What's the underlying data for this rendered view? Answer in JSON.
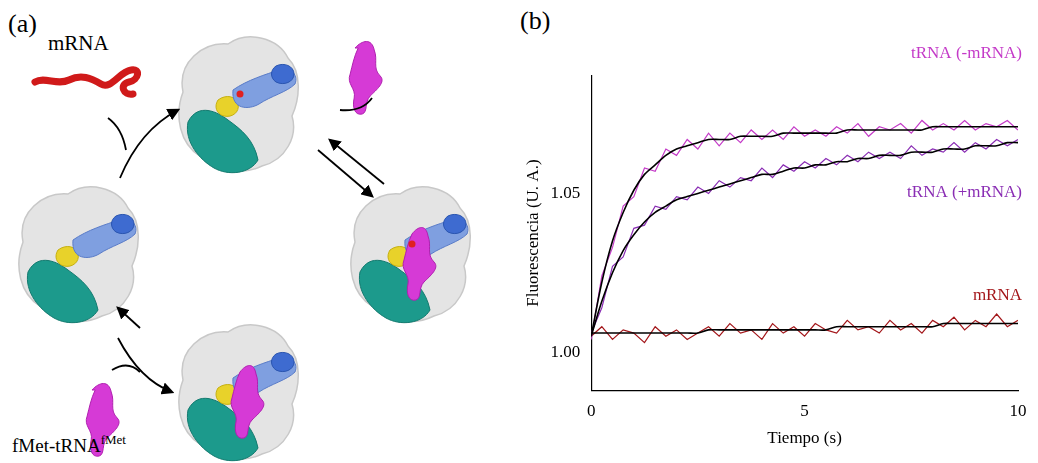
{
  "diagram": {
    "label": "(a)",
    "mrna_label": "mRNA",
    "trna_label": {
      "text": "fMet-tRNA",
      "superscript": "fMet"
    }
  },
  "chart_panel_label": "(b)",
  "chart_data": {
    "type": "line",
    "x_label": "Tiempo (s)",
    "y_label": "Fluorescencia (U. A.)",
    "x": [
      0,
      0.25,
      0.5,
      0.75,
      1,
      1.25,
      1.5,
      1.75,
      2,
      2.25,
      2.5,
      2.75,
      3,
      3.25,
      3.5,
      3.75,
      4,
      4.25,
      4.5,
      4.75,
      5,
      5.25,
      5.5,
      5.75,
      6,
      6.25,
      6.5,
      6.75,
      7,
      7.25,
      7.5,
      7.75,
      8,
      8.25,
      8.5,
      8.75,
      9,
      9.25,
      9.5,
      9.75,
      10
    ],
    "xlim": [
      0,
      10
    ],
    "xticks": [
      0,
      5,
      10
    ],
    "ylim": [
      0.988,
      1.087
    ],
    "yticks": [
      {
        "value": 1.0,
        "label": "1.00"
      },
      {
        "value": 1.05,
        "label": "1.05"
      }
    ],
    "grid": false,
    "series": [
      {
        "name": "tRNA (-mRNA)",
        "color": "#c43ac8",
        "values": [
          1.004,
          1.024,
          1.033,
          1.046,
          1.049,
          1.058,
          1.057,
          1.064,
          1.062,
          1.067,
          1.064,
          1.069,
          1.065,
          1.069,
          1.066,
          1.07,
          1.067,
          1.07,
          1.067,
          1.071,
          1.068,
          1.07,
          1.068,
          1.071,
          1.069,
          1.072,
          1.068,
          1.071,
          1.07,
          1.072,
          1.069,
          1.073,
          1.07,
          1.072,
          1.07,
          1.073,
          1.07,
          1.072,
          1.071,
          1.073,
          1.07
        ],
        "fit": [
          1.005,
          1.022,
          1.035,
          1.044,
          1.051,
          1.056,
          1.059,
          1.062,
          1.064,
          1.065,
          1.066,
          1.067,
          1.067,
          1.067,
          1.068,
          1.068,
          1.068,
          1.068,
          1.069,
          1.069,
          1.069,
          1.069,
          1.069,
          1.069,
          1.07,
          1.07,
          1.07,
          1.07,
          1.07,
          1.07,
          1.07,
          1.07,
          1.071,
          1.071,
          1.071,
          1.071,
          1.071,
          1.071,
          1.071,
          1.071,
          1.071
        ]
      },
      {
        "name": "tRNA (+mRNA)",
        "color": "#8a2db4",
        "values": [
          1.006,
          1.014,
          1.027,
          1.03,
          1.039,
          1.04,
          1.046,
          1.045,
          1.049,
          1.048,
          1.052,
          1.05,
          1.054,
          1.052,
          1.055,
          1.054,
          1.058,
          1.055,
          1.059,
          1.057,
          1.06,
          1.058,
          1.061,
          1.059,
          1.062,
          1.06,
          1.063,
          1.061,
          1.063,
          1.061,
          1.065,
          1.062,
          1.064,
          1.063,
          1.066,
          1.063,
          1.066,
          1.064,
          1.067,
          1.065,
          1.067
        ],
        "fit": [
          1.005,
          1.016,
          1.025,
          1.032,
          1.037,
          1.041,
          1.044,
          1.046,
          1.048,
          1.049,
          1.05,
          1.051,
          1.052,
          1.053,
          1.054,
          1.055,
          1.056,
          1.056,
          1.057,
          1.058,
          1.058,
          1.059,
          1.059,
          1.06,
          1.06,
          1.061,
          1.061,
          1.062,
          1.062,
          1.062,
          1.063,
          1.063,
          1.063,
          1.064,
          1.064,
          1.064,
          1.065,
          1.065,
          1.065,
          1.066,
          1.066
        ]
      },
      {
        "name": "mRNA",
        "color": "#a3161a",
        "values": [
          1.005,
          1.008,
          1.004,
          1.007,
          1.006,
          1.003,
          1.008,
          1.005,
          1.007,
          1.004,
          1.006,
          1.008,
          1.005,
          1.009,
          1.006,
          1.007,
          1.004,
          1.009,
          1.006,
          1.008,
          1.005,
          1.009,
          1.007,
          1.006,
          1.01,
          1.007,
          1.008,
          1.006,
          1.01,
          1.007,
          1.009,
          1.006,
          1.01,
          1.008,
          1.011,
          1.007,
          1.01,
          1.008,
          1.012,
          1.008,
          1.01
        ],
        "fit": [
          1.006,
          1.006,
          1.006,
          1.006,
          1.006,
          1.006,
          1.006,
          1.006,
          1.006,
          1.006,
          1.006,
          1.007,
          1.007,
          1.007,
          1.007,
          1.007,
          1.007,
          1.007,
          1.007,
          1.007,
          1.007,
          1.007,
          1.007,
          1.008,
          1.008,
          1.008,
          1.008,
          1.008,
          1.008,
          1.008,
          1.008,
          1.008,
          1.008,
          1.009,
          1.009,
          1.009,
          1.009,
          1.009,
          1.009,
          1.009,
          1.009
        ]
      }
    ]
  }
}
